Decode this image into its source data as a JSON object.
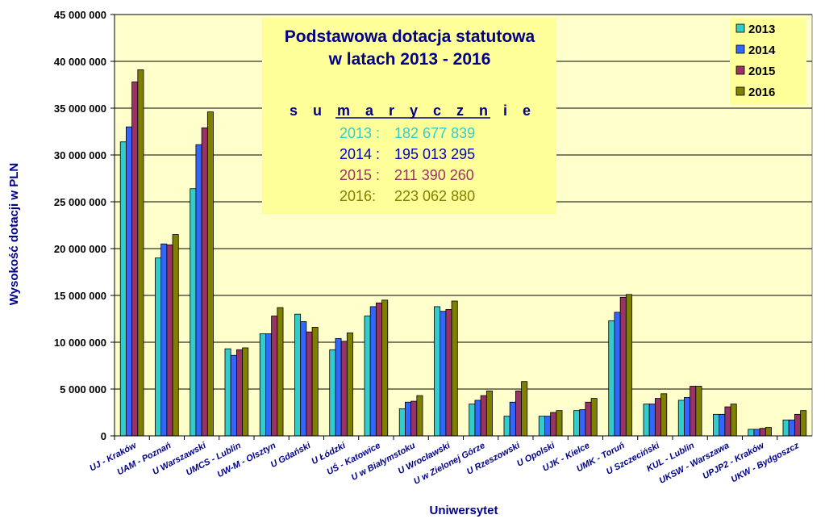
{
  "chart_data": {
    "type": "bar",
    "title": "Podstawowa dotacja statutowa",
    "subtitle": "w latach 2013 - 2016",
    "xlabel": "Uniwersytet",
    "ylabel": "Wysokość dotacji w PLN",
    "ylim": [
      0,
      45000000
    ],
    "y_ticks": [
      0,
      5000000,
      10000000,
      15000000,
      20000000,
      25000000,
      30000000,
      35000000,
      40000000,
      45000000
    ],
    "y_tick_labels": [
      "0",
      "5 000 000",
      "10 000 000",
      "15 000 000",
      "20 000 000",
      "25 000 000",
      "30 000 000",
      "35 000 000",
      "40 000 000",
      "45 000 000"
    ],
    "grid": true,
    "legend_position": "top-right",
    "categories": [
      "UJ - Kraków",
      "UAM - Poznań",
      "U Warszawski",
      "UMCS - Lublin",
      "UW-M - Olsztyn",
      "U Gdański",
      "U Łódzki",
      "UŚ - Katowice",
      "U w Białymstoku",
      "U Wrocławski",
      "U w Zielonej Górze",
      "U Rzeszowski",
      "U Opolski",
      "UJK - Kielce",
      "UMK - Toruń",
      "U Szczeciński",
      "KUL - Lublin",
      "UKSW - Warszawa",
      "UPJP2 - Kraków",
      "UKW - Bydgoszcz"
    ],
    "series": [
      {
        "name": "2013",
        "color": "#33cccc",
        "values": [
          31400000,
          19000000,
          26400000,
          9300000,
          10900000,
          13000000,
          9200000,
          12800000,
          2900000,
          13800000,
          3400000,
          2100000,
          2100000,
          2700000,
          12300000,
          3400000,
          3800000,
          2300000,
          700000,
          1700000
        ]
      },
      {
        "name": "2014",
        "color": "#3366ff",
        "values": [
          33000000,
          20500000,
          31100000,
          8600000,
          10900000,
          12200000,
          10400000,
          13800000,
          3600000,
          13300000,
          3800000,
          3600000,
          2100000,
          2800000,
          13200000,
          3400000,
          4100000,
          2300000,
          700000,
          1700000
        ]
      },
      {
        "name": "2015",
        "color": "#993366",
        "values": [
          37800000,
          20400000,
          32900000,
          9200000,
          12800000,
          11100000,
          10100000,
          14200000,
          3700000,
          13500000,
          4300000,
          4800000,
          2500000,
          3600000,
          14800000,
          4000000,
          5300000,
          3100000,
          800000,
          2300000
        ]
      },
      {
        "name": "2016",
        "color": "#808000",
        "values": [
          39100000,
          21500000,
          34600000,
          9400000,
          13700000,
          11600000,
          11000000,
          14500000,
          4300000,
          14400000,
          4800000,
          5800000,
          2700000,
          4000000,
          15100000,
          4500000,
          5300000,
          3400000,
          900000,
          2700000
        ]
      }
    ],
    "annotation": {
      "heading": "s u m a r y c z n i e",
      "lines": [
        {
          "label": "2013 :",
          "value": "182 677 839",
          "color": "#33cccc"
        },
        {
          "label": "2014 :",
          "value": "195 013 295",
          "color": "#0000cc"
        },
        {
          "label": "2015 :",
          "value": "211 390 260",
          "color": "#993366"
        },
        {
          "label": "2016:",
          "value": "223 062 880",
          "color": "#808000"
        }
      ]
    },
    "colors": {
      "plot_background": "#ffffcc",
      "annotation_background": "#ffff99",
      "gridline": "#000000"
    }
  }
}
